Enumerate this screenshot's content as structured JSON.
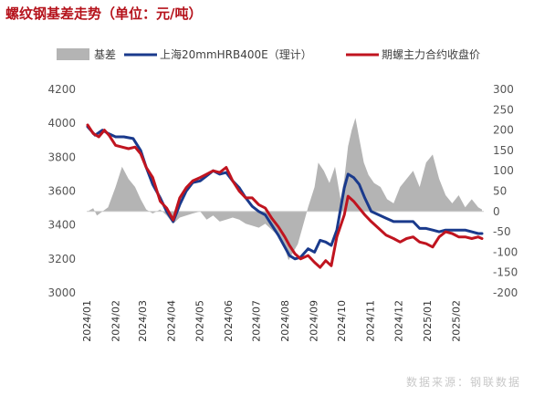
{
  "title": "螺纹钢基差走势（单位：元/吨）",
  "source": "数据来源：钢联数据",
  "chart_data": {
    "type": "line",
    "title": "螺纹钢基差走势（单位：元/吨）",
    "x_ticks": [
      "2024/01",
      "2024/02",
      "2024/03",
      "2024/04",
      "2024/05",
      "2024/06",
      "2024/07",
      "2024/08",
      "2024/09",
      "2024/10",
      "2024/11",
      "2024/12",
      "2025/01",
      "2025/02"
    ],
    "y_left": {
      "range": [
        3000,
        4200
      ],
      "ticks": [
        3000,
        3200,
        3400,
        3600,
        3800,
        4000,
        4200
      ]
    },
    "y_right": {
      "range": [
        -200,
        300
      ],
      "ticks": [
        -200,
        -150,
        -100,
        -50,
        0,
        50,
        100,
        150,
        200,
        250,
        300
      ]
    },
    "grid": false,
    "legend_position": "top",
    "series": [
      {
        "name": "基差",
        "type": "area",
        "axis": "right",
        "color": "#b4b4b4",
        "points": [
          [
            "2024-01-02",
            0
          ],
          [
            "2024-01-08",
            8
          ],
          [
            "2024-01-12",
            -10
          ],
          [
            "2024-01-18",
            0
          ],
          [
            "2024-01-24",
            10
          ],
          [
            "2024-02-01",
            60
          ],
          [
            "2024-02-08",
            110
          ],
          [
            "2024-02-15",
            80
          ],
          [
            "2024-02-22",
            60
          ],
          [
            "2024-02-28",
            30
          ],
          [
            "2024-03-05",
            5
          ],
          [
            "2024-03-12",
            -5
          ],
          [
            "2024-03-20",
            5
          ],
          [
            "2024-03-27",
            -10
          ],
          [
            "2024-04-03",
            -30
          ],
          [
            "2024-04-10",
            -15
          ],
          [
            "2024-04-17",
            -10
          ],
          [
            "2024-04-24",
            -5
          ],
          [
            "2024-05-02",
            0
          ],
          [
            "2024-05-09",
            -20
          ],
          [
            "2024-05-16",
            -10
          ],
          [
            "2024-05-23",
            -25
          ],
          [
            "2024-05-30",
            -20
          ],
          [
            "2024-06-06",
            -15
          ],
          [
            "2024-06-13",
            -20
          ],
          [
            "2024-06-20",
            -30
          ],
          [
            "2024-06-27",
            -35
          ],
          [
            "2024-07-04",
            -40
          ],
          [
            "2024-07-11",
            -30
          ],
          [
            "2024-07-18",
            -45
          ],
          [
            "2024-07-25",
            -60
          ],
          [
            "2024-08-01",
            -90
          ],
          [
            "2024-08-05",
            -120
          ],
          [
            "2024-08-10",
            -100
          ],
          [
            "2024-08-15",
            -80
          ],
          [
            "2024-08-20",
            -40
          ],
          [
            "2024-08-26",
            10
          ],
          [
            "2024-09-02",
            60
          ],
          [
            "2024-09-06",
            120
          ],
          [
            "2024-09-12",
            100
          ],
          [
            "2024-09-18",
            70
          ],
          [
            "2024-09-24",
            110
          ],
          [
            "2024-09-30",
            30
          ],
          [
            "2024-10-04",
            80
          ],
          [
            "2024-10-08",
            160
          ],
          [
            "2024-10-12",
            200
          ],
          [
            "2024-10-16",
            230
          ],
          [
            "2024-10-20",
            180
          ],
          [
            "2024-10-25",
            120
          ],
          [
            "2024-10-30",
            90
          ],
          [
            "2024-11-05",
            70
          ],
          [
            "2024-11-12",
            60
          ],
          [
            "2024-11-19",
            30
          ],
          [
            "2024-11-26",
            20
          ],
          [
            "2024-12-03",
            60
          ],
          [
            "2024-12-10",
            80
          ],
          [
            "2024-12-17",
            100
          ],
          [
            "2024-12-24",
            60
          ],
          [
            "2024-12-31",
            120
          ],
          [
            "2025-01-07",
            140
          ],
          [
            "2025-01-14",
            80
          ],
          [
            "2025-01-21",
            40
          ],
          [
            "2025-01-28",
            20
          ],
          [
            "2025-02-04",
            40
          ],
          [
            "2025-02-11",
            10
          ],
          [
            "2025-02-18",
            30
          ],
          [
            "2025-02-25",
            10
          ],
          [
            "2025-03-01",
            5
          ]
        ]
      },
      {
        "name": "上海20mmHRB400E（理计）",
        "type": "line",
        "axis": "left",
        "color": "#1a3a8c",
        "points": [
          [
            "2024-01-02",
            3980
          ],
          [
            "2024-01-10",
            3930
          ],
          [
            "2024-01-18",
            3960
          ],
          [
            "2024-01-24",
            3940
          ],
          [
            "2024-02-01",
            3920
          ],
          [
            "2024-02-10",
            3920
          ],
          [
            "2024-02-20",
            3910
          ],
          [
            "2024-02-28",
            3840
          ],
          [
            "2024-03-05",
            3740
          ],
          [
            "2024-03-12",
            3640
          ],
          [
            "2024-03-20",
            3560
          ],
          [
            "2024-03-27",
            3480
          ],
          [
            "2024-04-03",
            3420
          ],
          [
            "2024-04-10",
            3520
          ],
          [
            "2024-04-17",
            3600
          ],
          [
            "2024-04-24",
            3650
          ],
          [
            "2024-05-02",
            3660
          ],
          [
            "2024-05-09",
            3690
          ],
          [
            "2024-05-16",
            3720
          ],
          [
            "2024-05-23",
            3700
          ],
          [
            "2024-05-30",
            3710
          ],
          [
            "2024-06-06",
            3660
          ],
          [
            "2024-06-13",
            3620
          ],
          [
            "2024-06-20",
            3560
          ],
          [
            "2024-06-27",
            3510
          ],
          [
            "2024-07-04",
            3480
          ],
          [
            "2024-07-11",
            3460
          ],
          [
            "2024-07-18",
            3400
          ],
          [
            "2024-07-25",
            3340
          ],
          [
            "2024-08-01",
            3270
          ],
          [
            "2024-08-06",
            3220
          ],
          [
            "2024-08-12",
            3200
          ],
          [
            "2024-08-18",
            3210
          ],
          [
            "2024-08-26",
            3260
          ],
          [
            "2024-09-02",
            3240
          ],
          [
            "2024-09-08",
            3310
          ],
          [
            "2024-09-14",
            3300
          ],
          [
            "2024-09-20",
            3280
          ],
          [
            "2024-09-26",
            3370
          ],
          [
            "2024-10-04",
            3620
          ],
          [
            "2024-10-08",
            3700
          ],
          [
            "2024-10-14",
            3680
          ],
          [
            "2024-10-20",
            3640
          ],
          [
            "2024-10-26",
            3560
          ],
          [
            "2024-11-02",
            3480
          ],
          [
            "2024-11-10",
            3460
          ],
          [
            "2024-11-18",
            3440
          ],
          [
            "2024-11-26",
            3420
          ],
          [
            "2024-12-03",
            3420
          ],
          [
            "2024-12-10",
            3420
          ],
          [
            "2024-12-17",
            3420
          ],
          [
            "2024-12-24",
            3380
          ],
          [
            "2024-12-31",
            3380
          ],
          [
            "2025-01-07",
            3370
          ],
          [
            "2025-01-14",
            3360
          ],
          [
            "2025-01-21",
            3370
          ],
          [
            "2025-01-28",
            3370
          ],
          [
            "2025-02-04",
            3370
          ],
          [
            "2025-02-11",
            3370
          ],
          [
            "2025-02-18",
            3360
          ],
          [
            "2025-02-25",
            3350
          ],
          [
            "2025-03-01",
            3350
          ]
        ]
      },
      {
        "name": "期螺主力合约收盘价",
        "type": "line",
        "axis": "left",
        "color": "#c0141f",
        "points": [
          [
            "2024-01-02",
            3990
          ],
          [
            "2024-01-08",
            3940
          ],
          [
            "2024-01-14",
            3920
          ],
          [
            "2024-01-20",
            3960
          ],
          [
            "2024-01-25",
            3930
          ],
          [
            "2024-02-01",
            3870
          ],
          [
            "2024-02-08",
            3860
          ],
          [
            "2024-02-15",
            3850
          ],
          [
            "2024-02-22",
            3860
          ],
          [
            "2024-02-28",
            3820
          ],
          [
            "2024-03-05",
            3740
          ],
          [
            "2024-03-12",
            3680
          ],
          [
            "2024-03-20",
            3540
          ],
          [
            "2024-03-27",
            3500
          ],
          [
            "2024-04-03",
            3430
          ],
          [
            "2024-04-10",
            3560
          ],
          [
            "2024-04-17",
            3620
          ],
          [
            "2024-04-24",
            3660
          ],
          [
            "2024-05-02",
            3680
          ],
          [
            "2024-05-09",
            3700
          ],
          [
            "2024-05-16",
            3720
          ],
          [
            "2024-05-23",
            3710
          ],
          [
            "2024-05-30",
            3740
          ],
          [
            "2024-06-06",
            3660
          ],
          [
            "2024-06-13",
            3600
          ],
          [
            "2024-06-20",
            3560
          ],
          [
            "2024-06-27",
            3560
          ],
          [
            "2024-07-04",
            3520
          ],
          [
            "2024-07-11",
            3500
          ],
          [
            "2024-07-18",
            3440
          ],
          [
            "2024-07-25",
            3390
          ],
          [
            "2024-08-01",
            3330
          ],
          [
            "2024-08-06",
            3280
          ],
          [
            "2024-08-12",
            3230
          ],
          [
            "2024-08-18",
            3200
          ],
          [
            "2024-08-26",
            3220
          ],
          [
            "2024-09-02",
            3180
          ],
          [
            "2024-09-08",
            3150
          ],
          [
            "2024-09-14",
            3190
          ],
          [
            "2024-09-20",
            3160
          ],
          [
            "2024-09-26",
            3330
          ],
          [
            "2024-10-04",
            3460
          ],
          [
            "2024-10-08",
            3570
          ],
          [
            "2024-10-14",
            3540
          ],
          [
            "2024-10-20",
            3500
          ],
          [
            "2024-10-26",
            3460
          ],
          [
            "2024-11-02",
            3420
          ],
          [
            "2024-11-10",
            3380
          ],
          [
            "2024-11-18",
            3340
          ],
          [
            "2024-11-26",
            3320
          ],
          [
            "2024-12-03",
            3300
          ],
          [
            "2024-12-10",
            3320
          ],
          [
            "2024-12-17",
            3330
          ],
          [
            "2024-12-24",
            3300
          ],
          [
            "2024-12-31",
            3290
          ],
          [
            "2025-01-07",
            3270
          ],
          [
            "2025-01-14",
            3330
          ],
          [
            "2025-01-21",
            3360
          ],
          [
            "2025-01-28",
            3350
          ],
          [
            "2025-02-04",
            3330
          ],
          [
            "2025-02-11",
            3330
          ],
          [
            "2025-02-18",
            3320
          ],
          [
            "2025-02-25",
            3330
          ],
          [
            "2025-03-01",
            3320
          ]
        ]
      }
    ]
  }
}
